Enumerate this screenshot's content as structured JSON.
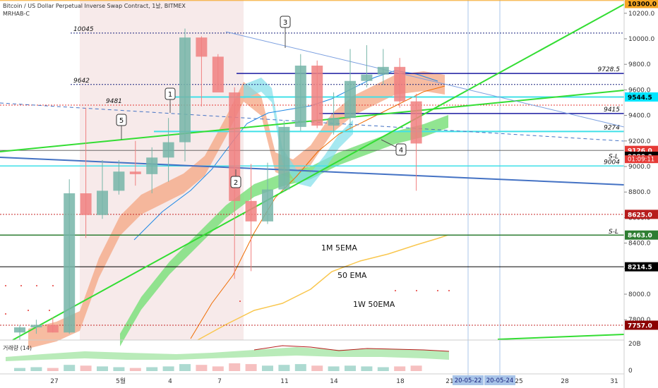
{
  "header": {
    "title": "Bitcoin / US Dollar Perpetual Inverse Swap Contract, 1날, BITMEX",
    "subtitle": "MRHAB-C"
  },
  "volume_label": "거래량 (14)",
  "chart_data": {
    "type": "candlestick",
    "y_axis": {
      "range": [
        7650,
        10320
      ],
      "ticks": [
        7800,
        8000,
        8200,
        8400,
        8600,
        8800,
        9000,
        9200,
        9400,
        9600,
        9800,
        10000,
        10200
      ],
      "tick_labels": [
        "7800.0",
        "8000.0",
        "8200.0",
        "8400.0",
        "8600.0",
        "8800.0",
        "9000.0",
        "9200.0",
        "9400.0",
        "9600.0",
        "9800.0",
        "10000.0",
        "10200.0"
      ]
    },
    "x_axis": {
      "ticks": [
        "27",
        "5월",
        "4",
        "7",
        "11",
        "14",
        "18",
        "21",
        "25",
        "28",
        "31"
      ],
      "date_tags": [
        "20-05-22",
        "20-05-24"
      ]
    },
    "candles": [
      {
        "o": 7700,
        "h": 7760,
        "l": 7640,
        "c": 7740
      },
      {
        "o": 7740,
        "h": 7800,
        "l": 7690,
        "c": 7760
      },
      {
        "o": 7760,
        "h": 7820,
        "l": 7700,
        "c": 7700
      },
      {
        "o": 7700,
        "h": 8900,
        "l": 7690,
        "c": 8790
      },
      {
        "o": 8790,
        "h": 9460,
        "l": 8440,
        "c": 8620
      },
      {
        "o": 8620,
        "h": 9050,
        "l": 8590,
        "c": 8810
      },
      {
        "o": 8810,
        "h": 9050,
        "l": 8780,
        "c": 8960
      },
      {
        "o": 8960,
        "h": 9200,
        "l": 8850,
        "c": 8940
      },
      {
        "o": 8940,
        "h": 9150,
        "l": 8790,
        "c": 9070
      },
      {
        "o": 9070,
        "h": 9380,
        "l": 8880,
        "c": 9190
      },
      {
        "o": 9190,
        "h": 10080,
        "l": 9040,
        "c": 10010
      },
      {
        "o": 10010,
        "h": 10020,
        "l": 9470,
        "c": 9860
      },
      {
        "o": 9860,
        "h": 9880,
        "l": 9600,
        "c": 9580
      },
      {
        "o": 9580,
        "h": 9620,
        "l": 8120,
        "c": 8730
      },
      {
        "o": 8730,
        "h": 9020,
        "l": 8180,
        "c": 8570
      },
      {
        "o": 8570,
        "h": 9030,
        "l": 8550,
        "c": 8820
      },
      {
        "o": 8820,
        "h": 9360,
        "l": 8800,
        "c": 9310
      },
      {
        "o": 9310,
        "h": 9880,
        "l": 9280,
        "c": 9790
      },
      {
        "o": 9790,
        "h": 9830,
        "l": 9300,
        "c": 9320
      },
      {
        "o": 9320,
        "h": 9580,
        "l": 9250,
        "c": 9380
      },
      {
        "o": 9380,
        "h": 9920,
        "l": 9300,
        "c": 9670
      },
      {
        "o": 9670,
        "h": 9950,
        "l": 9620,
        "c": 9720
      },
      {
        "o": 9720,
        "h": 9920,
        "l": 9640,
        "c": 9780
      },
      {
        "o": 9780,
        "h": 9850,
        "l": 9460,
        "c": 9510
      },
      {
        "o": 9510,
        "h": 9570,
        "l": 8810,
        "c": 9180
      }
    ],
    "horizontal_levels": [
      {
        "value": 10045,
        "label": "10045"
      },
      {
        "value": 9728.5,
        "label": "9728.5"
      },
      {
        "value": 9642,
        "label": "9642"
      },
      {
        "value": 9544.5,
        "label": "9544.5"
      },
      {
        "value": 9481,
        "label": "9481"
      },
      {
        "value": 9415,
        "label": "9415"
      },
      {
        "value": 9274,
        "label": "9274"
      },
      {
        "value": 9126,
        "label": "9126.0"
      },
      {
        "value": 9004,
        "label": "9004"
      },
      {
        "value": 9080,
        "label": "9080.0"
      },
      {
        "value": 8625,
        "label": "8625.0"
      },
      {
        "value": 8463,
        "label": "8463.0"
      },
      {
        "value": 8214.5,
        "label": "8214.5"
      },
      {
        "value": 7757,
        "label": "7757.0"
      },
      {
        "value": 10300,
        "label": "10300.0"
      }
    ],
    "price_tags": [
      {
        "value": 10300,
        "label": "10300.0",
        "color": "#f5a623"
      },
      {
        "value": 9544.5,
        "label": "9544.5",
        "color": "#00e5ff"
      },
      {
        "value": 9126,
        "label": "9126.0",
        "color": "#e53935"
      },
      {
        "value": 9080,
        "label": "9080.0",
        "color": "#000000"
      },
      {
        "value": 8625,
        "label": "8625.0",
        "color": "#b71c1c"
      },
      {
        "value": 8463,
        "label": "8463.0",
        "color": "#2e7d32"
      },
      {
        "value": 8214.5,
        "label": "8214.5",
        "color": "#000000"
      },
      {
        "value": 7757,
        "label": "7757.0",
        "color": "#8b0000"
      }
    ],
    "countdown": "01:09:11",
    "sl_labels": [
      "S-L",
      "S-L"
    ],
    "annotations": [
      "1M 5EMA",
      "50 EMA",
      "1W 50EMA"
    ],
    "callouts": [
      "1",
      "2",
      "3",
      "4",
      "5"
    ],
    "volume": {
      "axis_labels": [
        "20B",
        "0"
      ]
    },
    "colors": {
      "bull": "#76b5a8",
      "bear": "#f08080",
      "green_line": "#33dd33",
      "blue_line": "#4472c4",
      "cyan_line": "#40e0e8",
      "navy_line": "#1a1aa0"
    }
  }
}
